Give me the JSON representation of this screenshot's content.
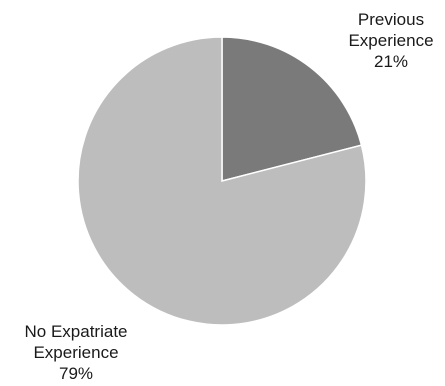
{
  "chart_data": {
    "type": "pie",
    "start_angle_deg": 0,
    "direction": "clockwise",
    "slices": [
      {
        "label_lines": [
          "Previous",
          "Experience"
        ],
        "percent_label": "21%",
        "value": 21,
        "color": "#7a7a7a"
      },
      {
        "label_lines": [
          "No Expatriate",
          "Experience"
        ],
        "percent_label": "79%",
        "value": 79,
        "color": "#bdbdbd"
      }
    ],
    "legend": "none"
  }
}
